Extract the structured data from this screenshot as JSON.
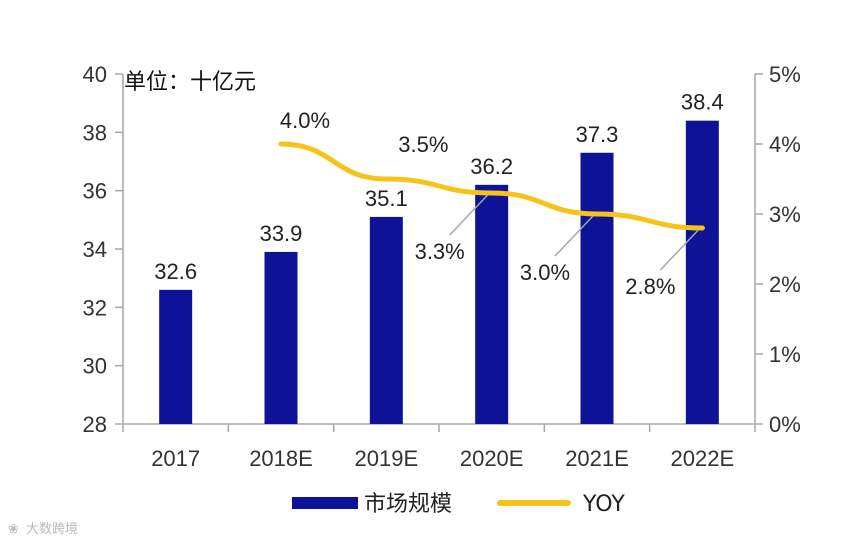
{
  "chart_data": {
    "type": "bar+line",
    "unit_label": "单位：十亿元",
    "categories": [
      "2017",
      "2018E",
      "2019E",
      "2020E",
      "2021E",
      "2022E"
    ],
    "series": [
      {
        "name": "市场规模",
        "type": "bar",
        "axis": "left",
        "values": [
          32.6,
          33.9,
          35.1,
          36.2,
          37.3,
          38.4
        ],
        "labels": [
          "32.6",
          "33.9",
          "35.1",
          "36.2",
          "37.3",
          "38.4"
        ]
      },
      {
        "name": "YOY",
        "type": "line",
        "axis": "right",
        "values": [
          null,
          4.0,
          3.5,
          3.3,
          3.0,
          2.8
        ],
        "labels": [
          "",
          "4.0%",
          "3.5%",
          "3.3%",
          "3.0%",
          "2.8%"
        ]
      }
    ],
    "y_left": {
      "min": 28,
      "max": 40,
      "ticks": [
        "28",
        "30",
        "32",
        "34",
        "36",
        "38",
        "40"
      ]
    },
    "y_right": {
      "min": 0,
      "max": 5,
      "ticks": [
        "0%",
        "1%",
        "2%",
        "3%",
        "4%",
        "5%"
      ]
    },
    "legend": [
      {
        "name": "市场规模",
        "kind": "bar"
      },
      {
        "name": "YOY",
        "kind": "line"
      }
    ],
    "legend_position": "bottom"
  },
  "colors": {
    "bar": "#0e1296",
    "line": "#f6c31a",
    "axis": "#a6a6a6",
    "leader": "#a6a6a6"
  },
  "watermark": "大数跨境"
}
